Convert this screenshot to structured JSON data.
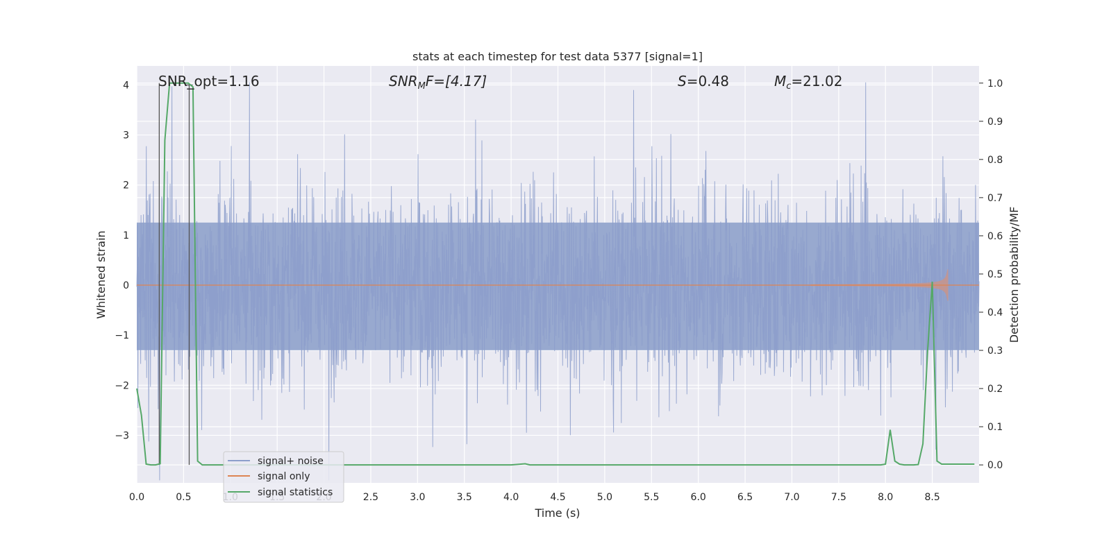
{
  "chart_data": {
    "type": "line",
    "title": "stats at each timestep for test data 5377 [signal=1]",
    "xlabel": "Time (s)",
    "ylabel_left": "Whitened strain",
    "ylabel_right": "Detection probability/MF",
    "xlim": [
      0.0,
      9.0
    ],
    "ylim_left": [
      -3.95,
      4.38
    ],
    "ylim_right": [
      -0.047,
      1.045
    ],
    "x_ticks": [
      "0.0",
      "0.5",
      "1.0",
      "1.5",
      "2.0",
      "2.5",
      "3.0",
      "3.5",
      "4.0",
      "4.5",
      "5.0",
      "5.5",
      "6.0",
      "6.5",
      "7.0",
      "7.5",
      "8.0",
      "8.5"
    ],
    "y_left_ticks": [
      "−3",
      "−2",
      "−1",
      "0",
      "1",
      "2",
      "3",
      "4"
    ],
    "y_right_ticks": [
      "0.0",
      "0.1",
      "0.2",
      "0.3",
      "0.4",
      "0.5",
      "0.6",
      "0.7",
      "0.8",
      "0.9",
      "1.0"
    ],
    "grid": true,
    "legend_position": "lower-left",
    "annotations": {
      "snr_opt": "SNR_opt=1.16",
      "snr_mf_base": "SNR",
      "snr_mf_sub": "M",
      "snr_mf_rest": "F=[4.17]",
      "s_sym": "S",
      "s_val": "=0.48",
      "mc_sym": "M",
      "mc_sub": "c",
      "mc_val": "=21.02"
    },
    "series": [
      {
        "name": "signal+ noise",
        "axis": "left",
        "color": "#8c9ecb",
        "description": "whitened noisy strain, roughly Gaussian around 0 with amplitude ~±1.5 and spikes to ±4",
        "envelope_sigma": 1.0
      },
      {
        "name": "signal only",
        "axis": "left",
        "color": "#dd8452",
        "description": "chirp signal, flat near 0 growing to about ±0.3 near t=8.6 s",
        "chirp_end": 8.67
      },
      {
        "name": "signal statistics",
        "axis": "right",
        "color": "#55a868",
        "x": [
          0.0,
          0.05,
          0.1,
          0.15,
          0.2,
          0.25,
          0.3,
          0.35,
          0.4,
          0.45,
          0.5,
          0.55,
          0.6,
          0.65,
          0.7,
          0.75,
          1.0,
          2.0,
          3.0,
          4.0,
          4.15,
          4.2,
          5.0,
          6.0,
          7.0,
          7.4,
          7.5,
          7.95,
          8.0,
          8.05,
          8.1,
          8.15,
          8.2,
          8.3,
          8.35,
          8.4,
          8.45,
          8.5,
          8.55,
          8.6,
          8.7,
          8.8,
          8.9,
          8.95
        ],
        "values": [
          0.2,
          0.13,
          0.002,
          0.0,
          0.0,
          0.003,
          0.85,
          1.0,
          1.0,
          1.0,
          1.0,
          1.0,
          0.99,
          0.01,
          0.0,
          0.0,
          0.0,
          0.0,
          0.0,
          0.0,
          0.003,
          0.0,
          0.0,
          0.0,
          0.0,
          0.0,
          0.0,
          0.0,
          0.002,
          0.092,
          0.01,
          0.002,
          0.0,
          0.0,
          0.001,
          0.055,
          0.3,
          0.48,
          0.01,
          0.002,
          0.002,
          0.002,
          0.002,
          0.002
        ]
      }
    ],
    "markers": [
      {
        "name": "segment-start",
        "x": 0.24,
        "y_top": 1.0
      },
      {
        "name": "segment-end",
        "x": 0.56,
        "y_top": 0.995
      }
    ]
  }
}
